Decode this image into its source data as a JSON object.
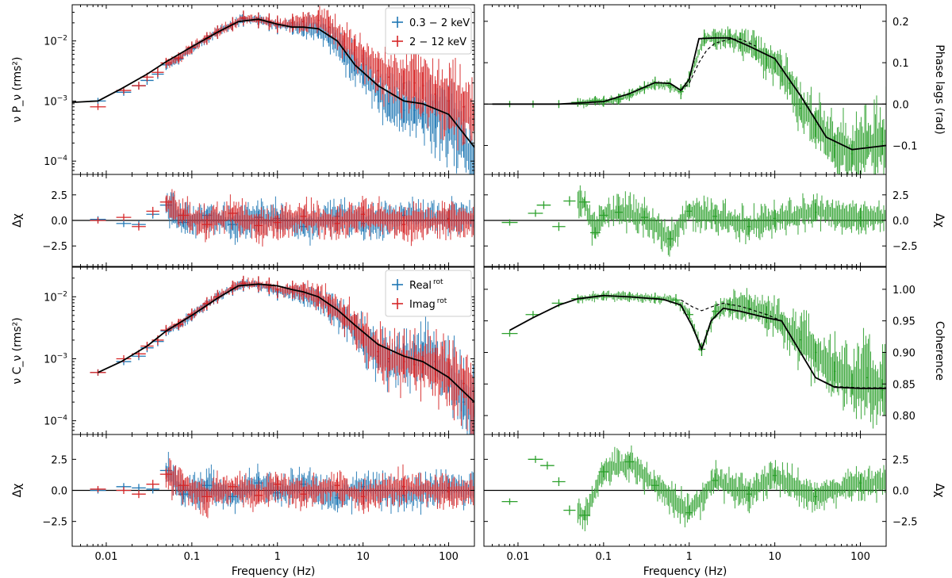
{
  "chart_data": [
    {
      "id": "psd",
      "type": "line",
      "xscale": "log",
      "yscale": "log",
      "xlim": [
        0.004,
        200
      ],
      "ylim": [
        6e-05,
        0.04
      ],
      "ylabel": "ν P_ν (rms²)",
      "xticklabels": [
        "0.01",
        "0.1",
        "1",
        "10",
        "100"
      ],
      "yticks": [
        0.0001,
        0.001,
        0.01
      ],
      "legend_position": "top-right",
      "series": [
        {
          "name": "0.3 − 2 keV",
          "color": "#1f77b4",
          "errorbars": true,
          "x": [
            0.008,
            0.016,
            0.024,
            0.03,
            0.04,
            0.05,
            0.07,
            0.1,
            0.15,
            0.2,
            0.3,
            0.4,
            0.6,
            0.8,
            1,
            1.5,
            2,
            3,
            4,
            6,
            8,
            10,
            15,
            20,
            30,
            40,
            50,
            70,
            100,
            150,
            200
          ],
          "y": [
            0.001,
            0.0014,
            0.0018,
            0.0022,
            0.0028,
            0.004,
            0.005,
            0.0075,
            0.011,
            0.014,
            0.019,
            0.023,
            0.022,
            0.02,
            0.018,
            0.018,
            0.017,
            0.016,
            0.012,
            0.006,
            0.004,
            0.003,
            0.0015,
            0.0009,
            0.0007,
            0.0007,
            0.0006,
            0.0006,
            0.0005,
            0.0002,
            0.0001
          ]
        },
        {
          "name": "2 − 12 keV",
          "color": "#d62728",
          "errorbars": true,
          "x": [
            0.008,
            0.016,
            0.024,
            0.03,
            0.04,
            0.05,
            0.07,
            0.1,
            0.15,
            0.2,
            0.3,
            0.4,
            0.6,
            0.8,
            1,
            1.5,
            2,
            3,
            4,
            6,
            8,
            10,
            15,
            20,
            30,
            40,
            50,
            70,
            100,
            150,
            200
          ],
          "y": [
            0.0008,
            0.0015,
            0.0018,
            0.0025,
            0.003,
            0.0043,
            0.0052,
            0.0078,
            0.011,
            0.014,
            0.019,
            0.024,
            0.022,
            0.021,
            0.019,
            0.02,
            0.021,
            0.022,
            0.017,
            0.01,
            0.007,
            0.005,
            0.0032,
            0.0025,
            0.002,
            0.002,
            0.0018,
            0.0013,
            0.001,
            0.0008,
            0.0005
          ]
        },
        {
          "name": "model",
          "color": "#000000",
          "x": [
            0.004,
            0.008,
            0.015,
            0.03,
            0.05,
            0.1,
            0.2,
            0.35,
            0.6,
            1,
            1.5,
            2,
            3,
            5,
            8,
            15,
            30,
            50,
            100,
            200
          ],
          "y": [
            0.00095,
            0.001,
            0.0016,
            0.0028,
            0.0045,
            0.008,
            0.014,
            0.021,
            0.023,
            0.019,
            0.017,
            0.017,
            0.016,
            0.01,
            0.004,
            0.0018,
            0.001,
            0.0009,
            0.0006,
            0.00017
          ]
        }
      ]
    },
    {
      "id": "lags",
      "type": "line",
      "xscale": "log",
      "yscale": "linear",
      "xlim": [
        0.004,
        200
      ],
      "ylim": [
        -0.17,
        0.24
      ],
      "ylabel": "Phase lags (rad)",
      "xticklabels": [
        "0.01",
        "0.1",
        "1",
        "10",
        "100"
      ],
      "yticks": [
        -0.1,
        0.0,
        0.1,
        0.2
      ],
      "yticklabels": [
        "−0.1",
        "0.0",
        "0.1",
        "0.2"
      ],
      "series": [
        {
          "name": "",
          "color": "#2ca02c",
          "errorbars": true,
          "x": [
            0.008,
            0.015,
            0.03,
            0.05,
            0.08,
            0.1,
            0.15,
            0.2,
            0.3,
            0.4,
            0.6,
            0.8,
            1,
            1.5,
            2,
            3,
            4,
            6,
            8,
            10,
            12,
            15,
            20,
            30,
            50,
            80,
            120,
            180
          ],
          "y": [
            0.0,
            0.0,
            0.0,
            0.004,
            0.008,
            0.006,
            0.012,
            0.022,
            0.04,
            0.05,
            0.045,
            0.03,
            0.06,
            0.16,
            0.16,
            0.16,
            0.15,
            0.13,
            0.11,
            0.1,
            0.08,
            0.05,
            -0.01,
            -0.05,
            -0.1,
            -0.12,
            -0.1,
            -0.09
          ]
        },
        {
          "name": "",
          "color": "#000000",
          "x": [
            0.005,
            0.03,
            0.1,
            0.2,
            0.4,
            0.6,
            0.8,
            1,
            1.3,
            2,
            3,
            5,
            10,
            20,
            40,
            80,
            200
          ],
          "y": [
            0.0,
            0.0,
            0.006,
            0.025,
            0.052,
            0.05,
            0.033,
            0.06,
            0.158,
            0.16,
            0.16,
            0.14,
            0.11,
            0.02,
            -0.08,
            -0.11,
            -0.1
          ]
        },
        {
          "name": "",
          "color": "#000000",
          "dashed": true,
          "x": [
            0.8,
            1,
            1.3,
            1.6,
            2,
            3,
            4,
            6
          ],
          "y": [
            0.033,
            0.05,
            0.1,
            0.13,
            0.147,
            0.157,
            0.157,
            0.14
          ]
        }
      ]
    },
    {
      "id": "resid1",
      "type": "line",
      "xscale": "log",
      "yscale": "linear",
      "xlim": [
        0.004,
        200
      ],
      "ylim": [
        -4.5,
        4.5
      ],
      "ylabel": "Δχ",
      "yticks": [
        -2.5,
        0.0,
        2.5
      ],
      "yticklabels": [
        "−2.5",
        "0.0",
        "2.5"
      ],
      "series": [
        {
          "name": "",
          "color": "#1f77b4",
          "errorbars": true,
          "x": [
            0.008,
            0.016,
            0.024,
            0.035,
            0.05,
            0.08,
            0.15,
            0.3,
            0.6,
            1,
            2,
            5,
            10,
            30,
            100
          ],
          "y": [
            0.1,
            -0.3,
            -0.4,
            0.6,
            1.5,
            -0.2,
            0.5,
            -0.4,
            0.3,
            0.2,
            -0.6,
            0.4,
            -0.3,
            0.5,
            0.2
          ]
        },
        {
          "name": "",
          "color": "#d62728",
          "errorbars": true,
          "x": [
            0.008,
            0.016,
            0.024,
            0.035,
            0.05,
            0.08,
            0.15,
            0.3,
            0.6,
            1,
            2,
            5,
            10,
            30,
            100
          ],
          "y": [
            0.0,
            0.3,
            -0.6,
            0.9,
            1.8,
            0.5,
            -0.4,
            0.7,
            -0.5,
            -0.2,
            0.4,
            -0.3,
            0.6,
            -0.4,
            0.1
          ]
        }
      ]
    },
    {
      "id": "resid2",
      "type": "line",
      "xscale": "log",
      "yscale": "linear",
      "xlim": [
        0.004,
        200
      ],
      "ylim": [
        -4.5,
        4.5
      ],
      "ylabel": "Δχ",
      "yticks": [
        -2.5,
        0.0,
        2.5
      ],
      "yticklabels": [
        "−2.5",
        "0.0",
        "2.5"
      ],
      "series": [
        {
          "name": "",
          "color": "#2ca02c",
          "errorbars": true,
          "x": [
            0.008,
            0.016,
            0.02,
            0.03,
            0.04,
            0.06,
            0.08,
            0.1,
            0.15,
            0.3,
            0.6,
            1,
            2,
            5,
            10,
            30,
            100
          ],
          "y": [
            -0.2,
            0.7,
            1.5,
            -0.6,
            1.9,
            1.8,
            -1.2,
            0.5,
            0.8,
            0.3,
            -1.8,
            0.9,
            0.4,
            -0.6,
            0.2,
            0.8,
            0.3
          ]
        }
      ]
    },
    {
      "id": "cross",
      "type": "line",
      "xscale": "log",
      "yscale": "log",
      "xlim": [
        0.004,
        200
      ],
      "ylim": [
        6e-05,
        0.03
      ],
      "ylabel": "ν C_ν (rms²)",
      "xticklabels": [
        "0.01",
        "0.1",
        "1",
        "10",
        "100"
      ],
      "yticks": [
        0.0001,
        0.001,
        0.01
      ],
      "legend_position": "top-right",
      "series": [
        {
          "name": "Real rot",
          "legend_text": "Real",
          "legend_sup": "rot",
          "color": "#1f77b4",
          "errorbars": true,
          "x": [
            0.008,
            0.016,
            0.024,
            0.03,
            0.04,
            0.05,
            0.07,
            0.1,
            0.15,
            0.2,
            0.3,
            0.4,
            0.6,
            0.8,
            1,
            1.5,
            2,
            3,
            4,
            6,
            8,
            10,
            15,
            20,
            30,
            40,
            50,
            70,
            100,
            150,
            200
          ],
          "y": [
            0.0006,
            0.0009,
            0.0011,
            0.0015,
            0.0019,
            0.0028,
            0.0035,
            0.005,
            0.0075,
            0.01,
            0.0135,
            0.016,
            0.0155,
            0.014,
            0.012,
            0.012,
            0.011,
            0.009,
            0.007,
            0.0045,
            0.003,
            0.002,
            0.0011,
            0.0009,
            0.0011,
            0.0011,
            0.0011,
            0.0009,
            0.0005,
            0.0002,
            0.0001
          ]
        },
        {
          "name": "Imag rot",
          "legend_text": "Imag",
          "legend_sup": "rot",
          "color": "#d62728",
          "errorbars": true,
          "x": [
            0.008,
            0.016,
            0.024,
            0.03,
            0.04,
            0.05,
            0.07,
            0.1,
            0.15,
            0.2,
            0.3,
            0.4,
            0.6,
            0.8,
            1,
            1.5,
            2,
            3,
            4,
            6,
            8,
            10,
            15,
            20,
            30,
            40,
            50,
            70,
            100,
            150,
            200
          ],
          "y": [
            0.0006,
            0.001,
            0.0012,
            0.0016,
            0.002,
            0.0029,
            0.0036,
            0.0052,
            0.0078,
            0.01,
            0.014,
            0.0165,
            0.016,
            0.015,
            0.013,
            0.013,
            0.012,
            0.01,
            0.0075,
            0.005,
            0.0035,
            0.0024,
            0.0013,
            0.001,
            0.0009,
            0.0008,
            0.0008,
            0.0007,
            0.0006,
            0.0004,
            0.0002
          ]
        },
        {
          "name": "model",
          "color": "#000000",
          "x": [
            0.008,
            0.015,
            0.03,
            0.05,
            0.1,
            0.2,
            0.35,
            0.6,
            1,
            1.5,
            2,
            3,
            5,
            8,
            15,
            30,
            50,
            100,
            200
          ],
          "y": [
            0.0006,
            0.0009,
            0.0016,
            0.0028,
            0.005,
            0.0095,
            0.015,
            0.016,
            0.015,
            0.013,
            0.012,
            0.01,
            0.0062,
            0.0035,
            0.0017,
            0.0011,
            0.0009,
            0.0005,
            0.0002
          ]
        }
      ]
    },
    {
      "id": "coherence",
      "type": "line",
      "xscale": "log",
      "yscale": "linear",
      "xlim": [
        0.004,
        200
      ],
      "ylim": [
        0.77,
        1.035
      ],
      "ylabel": "Coherence",
      "xticklabels": [
        "0.01",
        "0.1",
        "1",
        "10",
        "100"
      ],
      "yticks": [
        0.8,
        0.85,
        0.9,
        0.95,
        1.0
      ],
      "yticklabels": [
        "0.80",
        "0.85",
        "0.90",
        "0.95",
        "1.00"
      ],
      "series": [
        {
          "name": "",
          "color": "#2ca02c",
          "errorbars": true,
          "x": [
            0.008,
            0.015,
            0.03,
            0.05,
            0.1,
            0.2,
            0.4,
            0.7,
            1,
            1.4,
            2,
            3,
            5,
            8,
            12,
            20,
            30,
            50,
            80,
            120,
            180
          ],
          "y": [
            0.93,
            0.96,
            0.978,
            0.985,
            0.99,
            0.988,
            0.986,
            0.983,
            0.96,
            0.905,
            0.965,
            0.975,
            0.97,
            0.96,
            0.95,
            0.92,
            0.9,
            0.87,
            0.85,
            0.86,
            0.84
          ]
        },
        {
          "name": "",
          "color": "#000000",
          "x": [
            0.008,
            0.015,
            0.03,
            0.05,
            0.1,
            0.2,
            0.5,
            0.8,
            1.1,
            1.4,
            1.8,
            2.5,
            4,
            8,
            12,
            20,
            30,
            50,
            100,
            200
          ],
          "y": [
            0.935,
            0.955,
            0.975,
            0.985,
            0.99,
            0.988,
            0.984,
            0.975,
            0.94,
            0.905,
            0.95,
            0.97,
            0.965,
            0.955,
            0.95,
            0.9,
            0.86,
            0.845,
            0.843,
            0.843
          ]
        },
        {
          "name": "",
          "color": "#000000",
          "dashed": true,
          "x": [
            0.8,
            1.1,
            1.4,
            1.8,
            2.5,
            4,
            8,
            12,
            20,
            30,
            50,
            100,
            200
          ],
          "y": [
            0.983,
            0.972,
            0.966,
            0.972,
            0.978,
            0.973,
            0.96,
            0.95,
            0.9,
            0.86,
            0.846,
            0.844,
            0.844
          ]
        }
      ]
    },
    {
      "id": "resid3",
      "type": "line",
      "xscale": "log",
      "yscale": "linear",
      "xlim": [
        0.004,
        200
      ],
      "ylim": [
        -4.5,
        4.5
      ],
      "ylabel": "Δχ",
      "xlabel": "Frequency (Hz)",
      "xticklabels": [
        "0.01",
        "0.1",
        "1",
        "10",
        "100"
      ],
      "yticks": [
        -2.5,
        0.0,
        2.5
      ],
      "yticklabels": [
        "−2.5",
        "0.0",
        "2.5"
      ],
      "series": [
        {
          "name": "",
          "color": "#1f77b4",
          "errorbars": true,
          "x": [
            0.008,
            0.016,
            0.024,
            0.035,
            0.05,
            0.08,
            0.15,
            0.3,
            0.6,
            1,
            2,
            5,
            10,
            30,
            100
          ],
          "y": [
            0.0,
            0.3,
            0.2,
            0.1,
            1.6,
            -0.3,
            0.4,
            -0.5,
            0.6,
            -0.2,
            0.5,
            -0.6,
            0.3,
            -0.4,
            0.2
          ]
        },
        {
          "name": "",
          "color": "#d62728",
          "errorbars": true,
          "x": [
            0.008,
            0.016,
            0.024,
            0.035,
            0.05,
            0.08,
            0.15,
            0.3,
            0.6,
            1,
            2,
            5,
            10,
            30,
            100
          ],
          "y": [
            0.1,
            0.0,
            -0.3,
            0.5,
            1.3,
            0.4,
            -0.5,
            0.3,
            -0.4,
            0.5,
            -0.3,
            0.4,
            -0.5,
            0.3,
            -0.1
          ]
        }
      ]
    },
    {
      "id": "resid4",
      "type": "line",
      "xscale": "log",
      "yscale": "linear",
      "xlim": [
        0.004,
        200
      ],
      "ylim": [
        -4.5,
        4.5
      ],
      "ylabel": "Δχ",
      "xlabel": "Frequency (Hz)",
      "xticklabels": [
        "0.01",
        "0.1",
        "1",
        "10",
        "100"
      ],
      "yticks": [
        -2.5,
        0.0,
        2.5
      ],
      "yticklabels": [
        "−2.5",
        "0.0",
        "2.5"
      ],
      "series": [
        {
          "name": "",
          "color": "#2ca02c",
          "errorbars": true,
          "x": [
            0.008,
            0.016,
            0.022,
            0.03,
            0.04,
            0.06,
            0.1,
            0.2,
            0.4,
            1,
            2,
            5,
            10,
            30,
            100
          ],
          "y": [
            -0.9,
            2.5,
            2.0,
            0.7,
            -1.6,
            -2.0,
            1.5,
            2.3,
            0.4,
            -1.8,
            0.8,
            -0.3,
            1.2,
            -0.5,
            0.6
          ]
        }
      ]
    }
  ]
}
